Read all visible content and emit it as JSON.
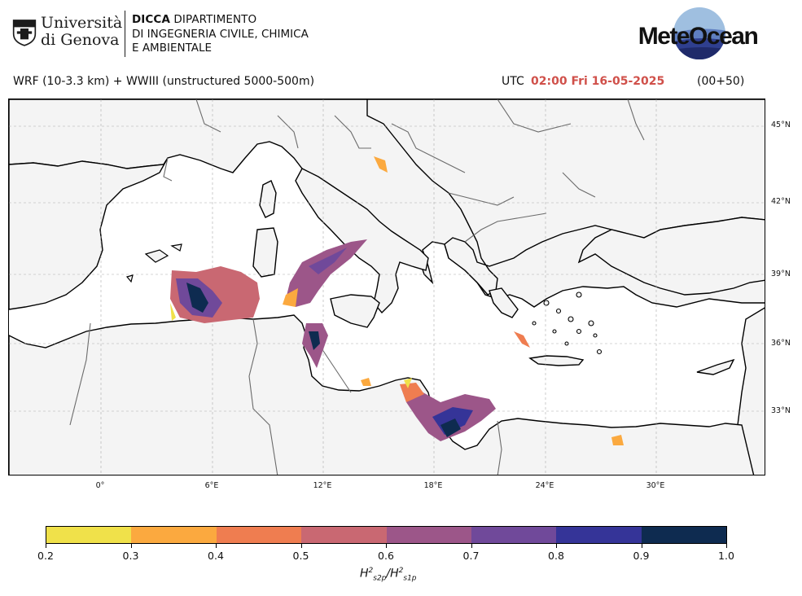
{
  "header": {
    "unige_line1": "Università",
    "unige_line2": "di Genova",
    "dicca_acronym": "DICCA",
    "dicca_line1_rest": " DIPARTIMENTO",
    "dicca_line2": "DI INGEGNERIA CIVILE, CHIMICA",
    "dicca_line3": "E AMBIENTALE",
    "meteocean_logo": "MeteOcean"
  },
  "subtitle": {
    "model": "WRF (10-3.3 km) + WWIII (unstructured 5000-500m)",
    "utc": "UTC",
    "valid_time": "02:00 Fri 16-05-2025",
    "forecast_step": "(00+50)"
  },
  "map": {
    "lat_labels": [
      "45°N",
      "42°N",
      "39°N",
      "36°N",
      "33°N"
    ],
    "lon_labels": [
      "0°",
      "6°E",
      "12°E",
      "18°E",
      "24°E",
      "30°E"
    ],
    "land_color": "#f4f4f4",
    "sea_color": "#ffffff"
  },
  "colorbar": {
    "ticks": [
      "0.2",
      "0.3",
      "0.4",
      "0.5",
      "0.6",
      "0.7",
      "0.8",
      "0.9",
      "1.0"
    ],
    "colors": [
      "#f0e14a",
      "#fba93f",
      "#ef7d50",
      "#c96872",
      "#9c5689",
      "#70499a",
      "#353498",
      "#0e2b50"
    ],
    "label_main": "H",
    "label_sub_num": "s2p",
    "label_sub_den": "s1p",
    "label_sup": "2"
  }
}
